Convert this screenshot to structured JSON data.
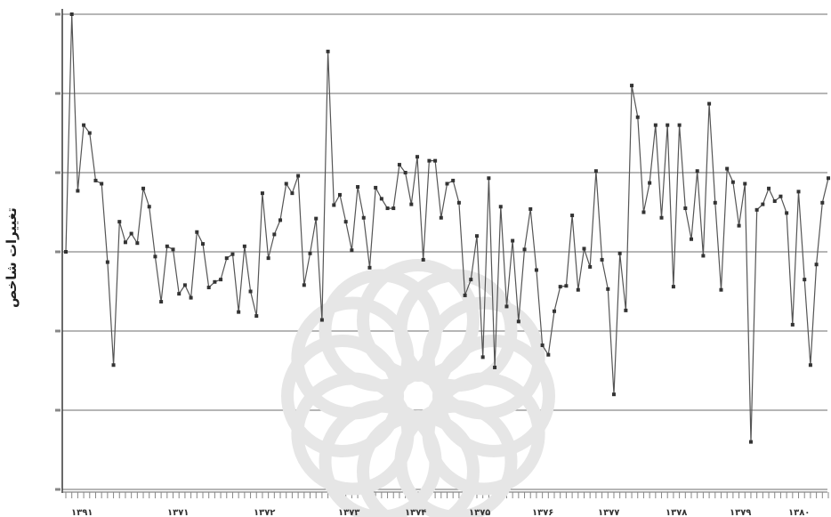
{
  "chart_data": {
    "type": "line",
    "ylabel": "تغییرات شاخص",
    "xlabel": "",
    "title": "",
    "x_tick_labels": [
      "۱۳۹۱",
      "۱۳۷۱",
      "۱۳۷۲",
      "۱۳۷۳",
      "۱۳۷۴",
      "۱۳۷۵",
      "۱۳۷۶",
      "۱۳۷۷",
      "۱۳۷۸",
      "۱۳۷۹",
      "۱۳۸۰"
    ],
    "ylim": [
      -3,
      3
    ],
    "grid": true,
    "color": "#555555",
    "values": [
      0.0,
      3.0,
      0.77,
      1.6,
      1.5,
      0.9,
      0.86,
      -0.13,
      -1.43,
      0.38,
      0.12,
      0.23,
      0.11,
      0.8,
      0.57,
      -0.06,
      -0.63,
      0.07,
      0.03,
      -0.53,
      -0.42,
      -0.58,
      0.25,
      0.1,
      -0.45,
      -0.38,
      -0.35,
      -0.08,
      -0.03,
      -0.76,
      0.07,
      -0.5,
      -0.81,
      0.74,
      -0.08,
      0.22,
      0.4,
      0.86,
      0.74,
      0.96,
      -0.42,
      -0.02,
      0.42,
      -0.86,
      2.53,
      0.59,
      0.72,
      0.38,
      0.02,
      0.82,
      0.43,
      -0.2,
      0.81,
      0.67,
      0.55,
      0.55,
      1.1,
      1.0,
      0.6,
      1.2,
      -0.1,
      1.15,
      1.15,
      0.43,
      0.86,
      0.9,
      0.62,
      -0.55,
      -0.35,
      0.2,
      -1.33,
      0.93,
      -1.46,
      0.57,
      -0.69,
      0.14,
      -0.88,
      0.03,
      0.54,
      -0.23,
      -1.18,
      -1.3,
      -0.75,
      -0.44,
      -0.43,
      0.46,
      -0.48,
      0.04,
      -0.19,
      1.02,
      -0.1,
      -0.47,
      -1.8,
      -0.02,
      -0.74,
      2.1,
      1.7,
      0.5,
      0.87,
      1.6,
      0.43,
      1.6,
      -0.44,
      1.6,
      0.55,
      0.16,
      1.02,
      -0.05,
      1.87,
      0.62,
      -0.48,
      1.05,
      0.88,
      0.33,
      0.86,
      -2.4,
      0.53,
      0.6,
      0.8,
      0.64,
      0.7,
      0.49,
      -0.92,
      0.76,
      -0.35,
      -1.43,
      -0.16,
      0.62,
      0.93
    ]
  }
}
